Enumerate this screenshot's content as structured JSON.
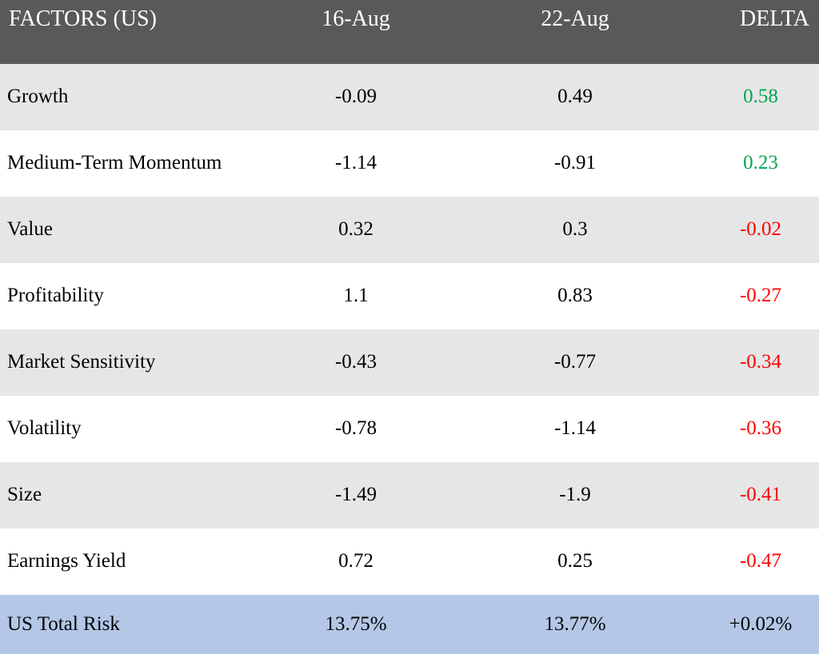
{
  "table": {
    "headers": [
      "FACTORS (US)",
      "16-Aug",
      "22-Aug",
      "DELTA"
    ],
    "rows": [
      {
        "factor": "Growth",
        "aug16": "-0.09",
        "aug22": "0.49",
        "delta": "0.58",
        "delta_sign": "pos"
      },
      {
        "factor": "Medium-Term Momentum",
        "aug16": "-1.14",
        "aug22": "-0.91",
        "delta": "0.23",
        "delta_sign": "pos"
      },
      {
        "factor": "Value",
        "aug16": "0.32",
        "aug22": "0.3",
        "delta": "-0.02",
        "delta_sign": "neg"
      },
      {
        "factor": "Profitability",
        "aug16": "1.1",
        "aug22": "0.83",
        "delta": "-0.27",
        "delta_sign": "neg"
      },
      {
        "factor": "Market Sensitivity",
        "aug16": "-0.43",
        "aug22": "-0.77",
        "delta": "-0.34",
        "delta_sign": "neg"
      },
      {
        "factor": "Volatility",
        "aug16": "-0.78",
        "aug22": "-1.14",
        "delta": "-0.36",
        "delta_sign": "neg"
      },
      {
        "factor": "Size",
        "aug16": "-1.49",
        "aug22": "-1.9",
        "delta": "-0.41",
        "delta_sign": "neg"
      },
      {
        "factor": "Earnings Yield",
        "aug16": "0.72",
        "aug22": "0.25",
        "delta": "-0.47",
        "delta_sign": "neg"
      }
    ],
    "total": {
      "factor": "US Total Risk",
      "aug16": "13.75%",
      "aug22": "13.77%",
      "delta": "+0.02%"
    }
  },
  "colors": {
    "header_bg": "#595959",
    "shade_row_bg": "#e6e6e6",
    "total_row_bg": "#b4c7e7",
    "positive": "#00a550",
    "negative": "#ff0000"
  }
}
